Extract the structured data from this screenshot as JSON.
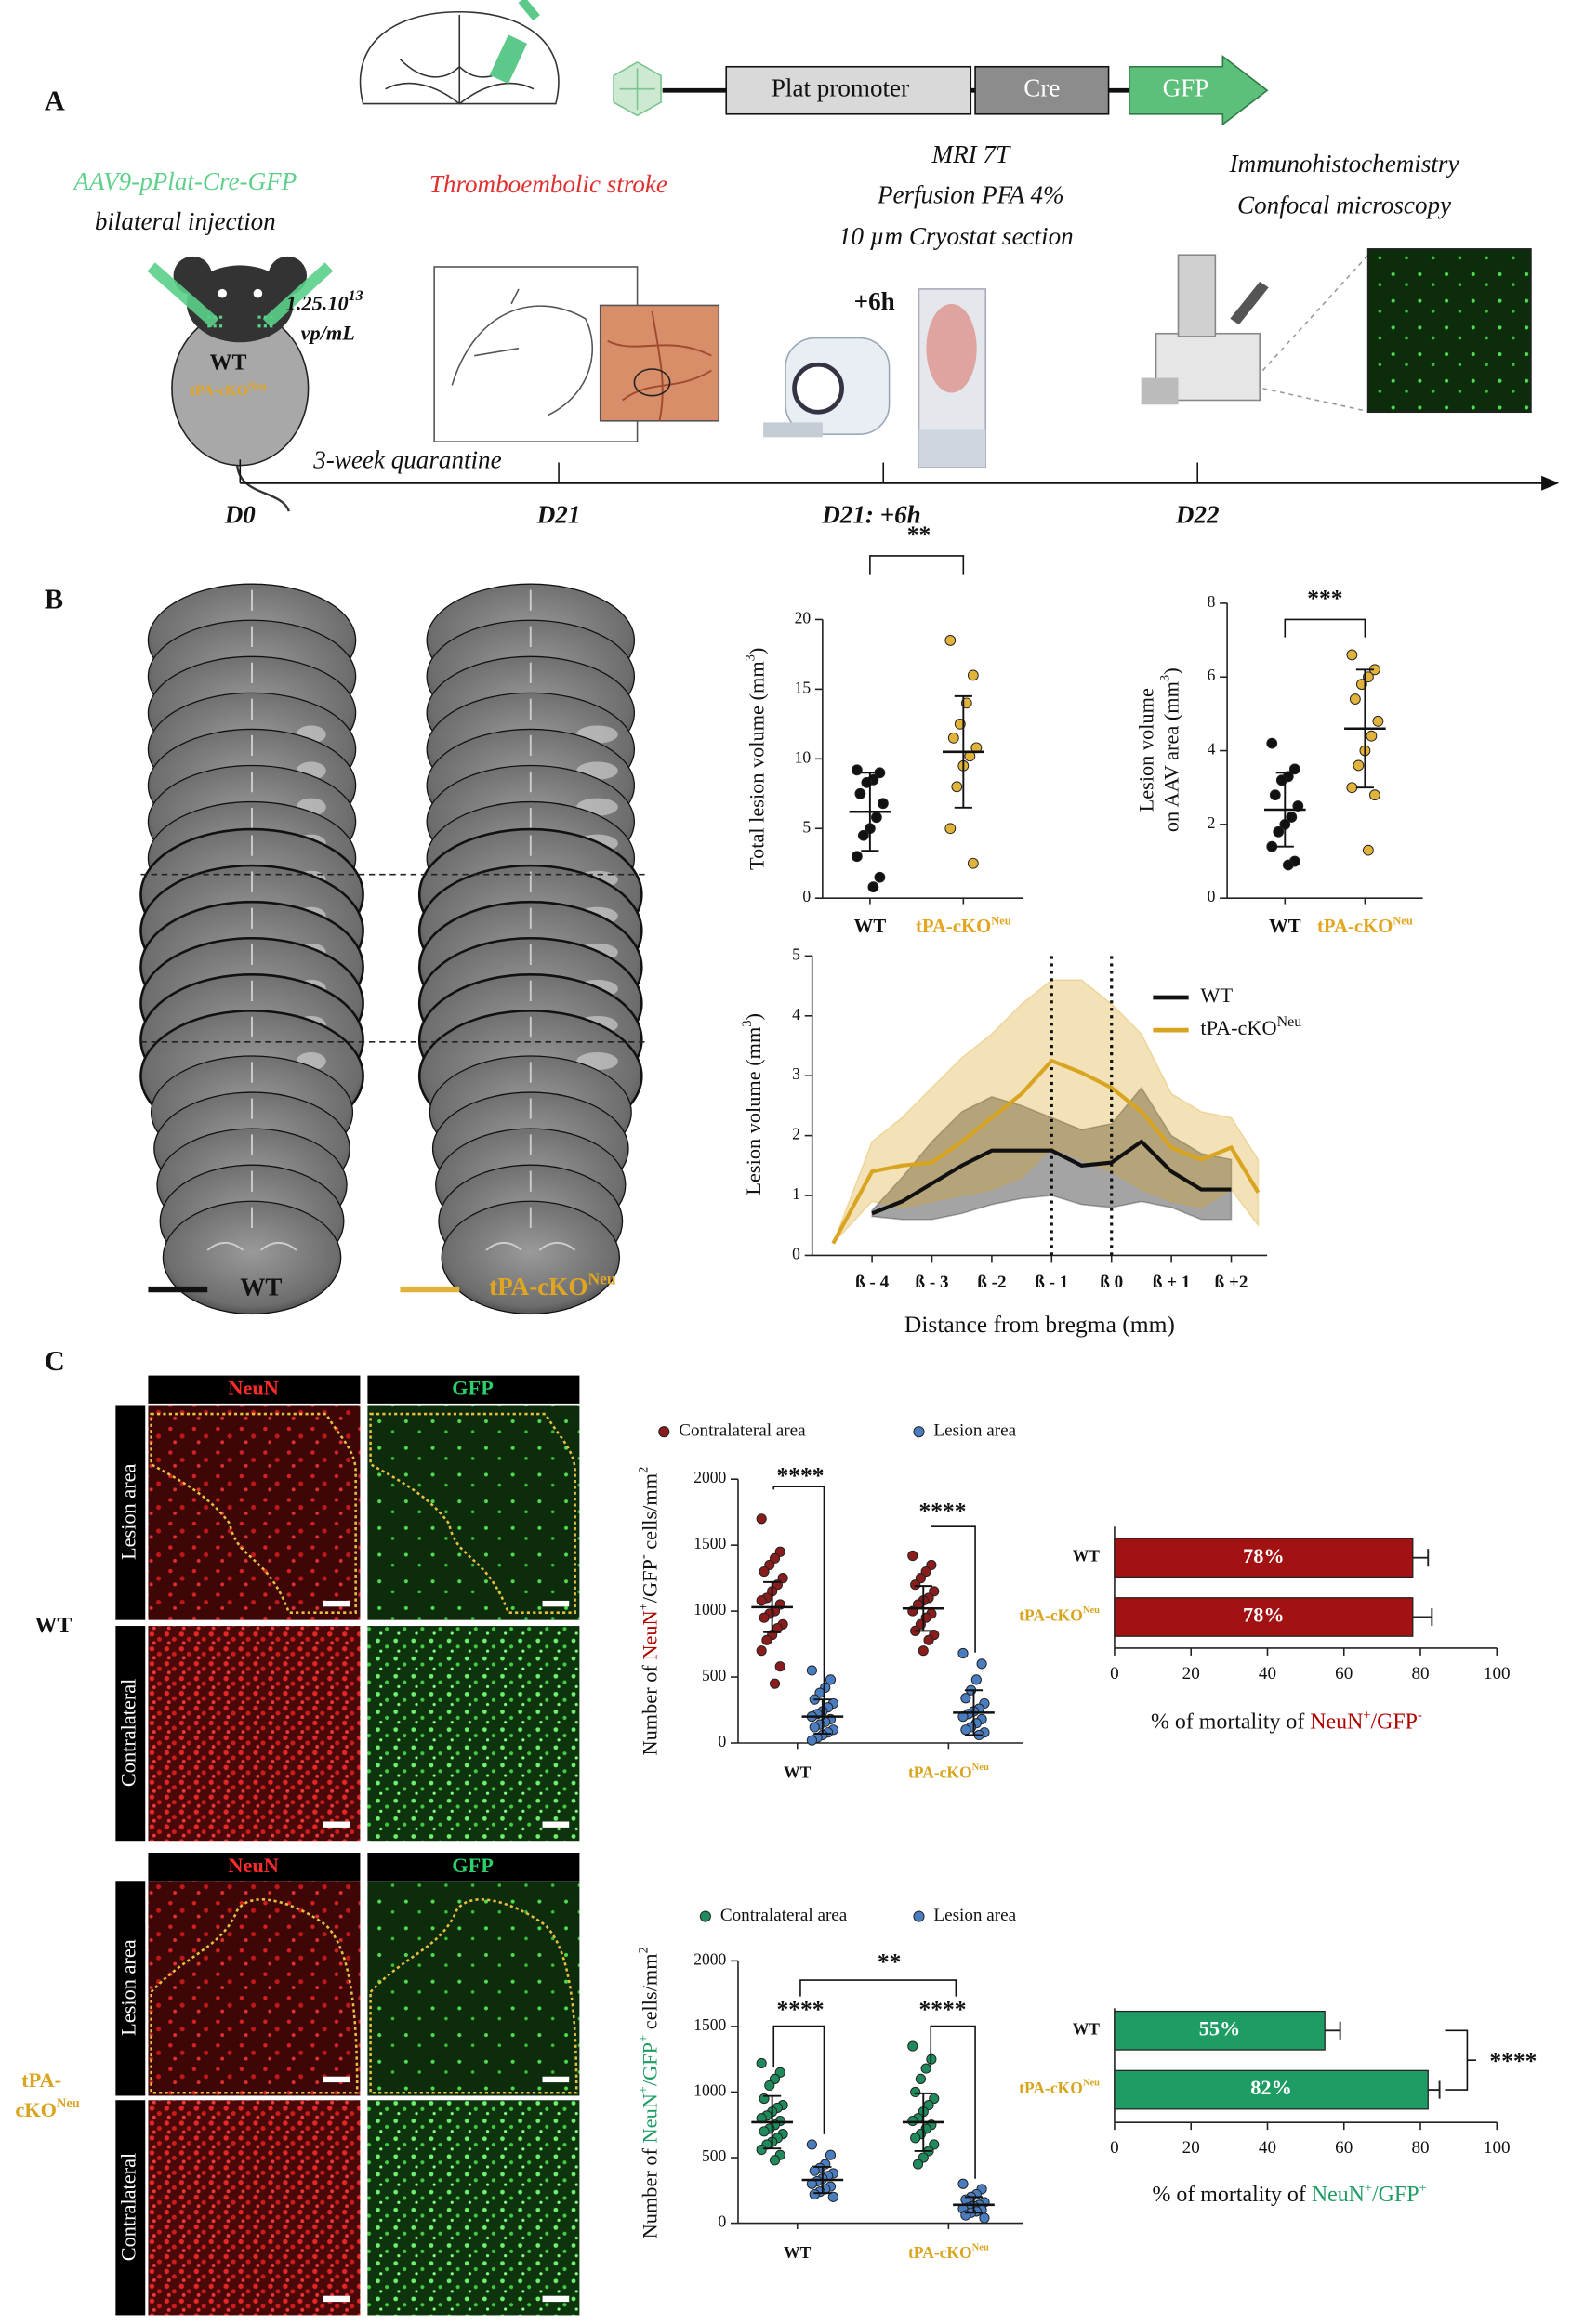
{
  "figure": {
    "panel_labels": [
      "A",
      "B",
      "C"
    ],
    "construct": [
      "Plat promoter",
      "Cre",
      "GFP"
    ],
    "injection": [
      "AAV9-pPlat-Cre-GFP",
      "bilateral injection"
    ],
    "dose": [
      "1.25.10",
      "13",
      "vp/mL"
    ],
    "mouse": [
      "WT",
      "tPA-cKO",
      "Neu"
    ],
    "stroke": "Thromboembolic stroke",
    "imaging": [
      "MRI 7T",
      "Perfusion PFA 4%",
      "10 µm Cryostat section"
    ],
    "histology": [
      "Immunohistochemistry",
      "Confocal microscopy"
    ],
    "delay": "+6h",
    "quarantine": "3-week quarantine",
    "timeline": [
      "D0",
      "D21",
      "D21: +6h",
      "D22"
    ],
    "mri_legend": [
      "WT",
      "tPA-cKO",
      "Neu"
    ],
    "stain_headers": [
      "NeuN",
      "GFP"
    ],
    "regions": [
      "Lesion area",
      "Contralateral"
    ],
    "genotypes": [
      "WT",
      "tPA-",
      "cKO",
      "Neu"
    ]
  },
  "chart_data": [
    {
      "type": "strip",
      "ylabel": [
        "Total lesion volume (mm",
        "3",
        ")"
      ],
      "categories": [
        "WT",
        "tPA-cKO"
      ],
      "category_sup": "Neu",
      "ylim": [
        0,
        20
      ],
      "yticks": [
        0,
        5,
        10,
        15,
        20
      ],
      "series": [
        {
          "colors": [
            "#111111",
            "#e2b33a"
          ],
          "values": [
            [
              9.2,
              9.0,
              8.5,
              8.3,
              7.5,
              6.8,
              5.8,
              5.0,
              4.5,
              3.0,
              1.5,
              0.8
            ],
            [
              18.5,
              16.0,
              14.0,
              12.5,
              11.5,
              10.8,
              10.2,
              9.5,
              8.0,
              5.0,
              2.5
            ]
          ],
          "means": [
            6.2,
            10.5
          ],
          "sds": [
            2.8,
            4.0
          ]
        }
      ],
      "annotations": [
        "**"
      ]
    },
    {
      "type": "strip",
      "ylabel": [
        "Lesion volume",
        "on AAV area (mm",
        "3",
        ")"
      ],
      "categories": [
        "WT",
        "tPA-cKO"
      ],
      "category_sup": "Neu",
      "ylim": [
        0,
        8
      ],
      "yticks": [
        0,
        2,
        4,
        6,
        8
      ],
      "series": [
        {
          "colors": [
            "#111111",
            "#e2b33a"
          ],
          "values": [
            [
              4.2,
              3.5,
              3.3,
              3.2,
              2.8,
              2.5,
              2.2,
              2.0,
              1.8,
              1.4,
              1.0,
              0.9
            ],
            [
              6.6,
              6.2,
              6.0,
              5.8,
              5.4,
              4.8,
              4.4,
              4.0,
              3.6,
              3.0,
              2.8,
              1.3
            ]
          ],
          "means": [
            2.4,
            4.6
          ],
          "sds": [
            1.0,
            1.6
          ]
        }
      ],
      "annotations": [
        "***"
      ]
    },
    {
      "type": "line",
      "ylabel": [
        "Lesion volume (mm",
        "3",
        ")"
      ],
      "xlabel": "Distance from bregma (mm)",
      "x": [
        -4.65,
        -4,
        -3.5,
        -3,
        -2.5,
        -2,
        -1.5,
        -1,
        -0.5,
        0,
        0.5,
        1,
        1.5,
        2,
        2.45
      ],
      "xlim": [
        -5,
        2.6
      ],
      "xticks": [
        {
          "value": -4,
          "label": "ß - 4"
        },
        {
          "value": -3,
          "label": "ß - 3"
        },
        {
          "value": -2,
          "label": "ß -2"
        },
        {
          "value": -1,
          "label": "ß - 1"
        },
        {
          "value": 0,
          "label": "ß 0"
        },
        {
          "value": 1,
          "label": "ß + 1"
        },
        {
          "value": 2,
          "label": "ß +2"
        }
      ],
      "ylim": [
        0,
        5
      ],
      "yticks": [
        0,
        1,
        2,
        3,
        4,
        5
      ],
      "vlines": [
        -1,
        0
      ],
      "series": [
        {
          "name": "WT",
          "color": "#111111",
          "values": [
            null,
            0.7,
            0.9,
            1.2,
            1.5,
            1.75,
            1.75,
            1.75,
            1.5,
            1.55,
            1.9,
            1.4,
            1.1,
            1.1,
            null
          ],
          "upper": [
            null,
            0.75,
            1.3,
            1.9,
            2.4,
            2.65,
            2.5,
            2.3,
            2.1,
            2.2,
            2.8,
            2.0,
            1.7,
            1.6,
            null
          ],
          "lower": [
            null,
            0.65,
            0.6,
            0.6,
            0.7,
            0.85,
            0.95,
            1.0,
            0.85,
            0.8,
            0.9,
            0.8,
            0.6,
            0.6,
            null
          ]
        },
        {
          "name": "tPA-cKO",
          "name_sup": "Neu",
          "color": "#d9a521",
          "values": [
            0.2,
            1.4,
            1.5,
            1.55,
            1.9,
            2.3,
            2.7,
            3.25,
            3.05,
            2.8,
            2.4,
            1.8,
            1.6,
            1.8,
            1.05
          ],
          "upper": [
            0.2,
            1.9,
            2.3,
            2.8,
            3.3,
            3.7,
            4.2,
            4.6,
            4.6,
            4.2,
            3.7,
            2.7,
            2.4,
            2.3,
            1.6
          ],
          "lower": [
            0.2,
            0.9,
            0.8,
            0.9,
            1.0,
            1.1,
            1.3,
            1.8,
            1.6,
            1.4,
            1.1,
            0.9,
            0.8,
            1.1,
            0.5
          ]
        }
      ]
    },
    {
      "type": "strip",
      "ylabel": [
        "Number of ",
        "NeuN",
        "+",
        "/GFP",
        "-",
        " cells/mm",
        "2"
      ],
      "categories": [
        "WT",
        "tPA-cKO"
      ],
      "category_sup": "Neu",
      "ylim": [
        0,
        2000
      ],
      "yticks": [
        0,
        500,
        1000,
        1500,
        2000
      ],
      "series": [
        {
          "name": "Contralateral area",
          "color": "#8b1c1c",
          "values": [
            [
              1700,
              1450,
              1400,
              1350,
              1300,
              1250,
              1200,
              1150,
              1100,
              1080,
              1050,
              1000,
              980,
              950,
              900,
              870,
              820,
              780,
              700,
              580,
              450
            ],
            [
              1420,
              1350,
              1300,
              1250,
              1200,
              1150,
              1100,
              1080,
              1050,
              1000,
              980,
              950,
              900,
              850,
              820,
              780,
              700
            ]
          ],
          "means": [
            1030,
            1020
          ],
          "sds": [
            190,
            170
          ]
        },
        {
          "name": "Lesion area",
          "color": "#4a7cc0",
          "values": [
            [
              550,
              480,
              420,
              380,
              330,
              300,
              270,
              240,
              220,
              200,
              180,
              160,
              140,
              120,
              100,
              80,
              60,
              40,
              20
            ],
            [
              680,
              600,
              480,
              400,
              340,
              300,
              260,
              240,
              220,
              200,
              180,
              150,
              120,
              100,
              80,
              60
            ]
          ],
          "means": [
            200,
            230
          ],
          "sds": [
            130,
            170
          ]
        }
      ],
      "annotations": [
        "****",
        "****"
      ]
    },
    {
      "type": "bar",
      "xlabel": [
        "% of mortality of ",
        "NeuN",
        "+",
        "/GFP",
        "-"
      ],
      "categories": [
        "WT",
        "tPA-cKO"
      ],
      "category_sup": "Neu",
      "values": [
        78,
        78
      ],
      "value_labels": [
        "78%",
        "78%"
      ],
      "errors": [
        4,
        5
      ],
      "color": "#a31212",
      "xlim": [
        0,
        100
      ],
      "xticks": [
        0,
        20,
        40,
        60,
        80,
        100
      ]
    },
    {
      "type": "strip",
      "ylabel": [
        "Number of ",
        "NeuN",
        "+",
        "/GFP",
        "+",
        " cells/mm",
        "2"
      ],
      "categories": [
        "WT",
        "tPA-cKO"
      ],
      "category_sup": "Neu",
      "ylim": [
        0,
        2000
      ],
      "yticks": [
        0,
        500,
        1000,
        1500,
        2000
      ],
      "series": [
        {
          "name": "Contralateral area",
          "color": "#1f8a5b",
          "values": [
            [
              1220,
              1150,
              1100,
              1050,
              950,
              900,
              880,
              850,
              820,
              800,
              780,
              750,
              720,
              700,
              680,
              650,
              620,
              600,
              560,
              520,
              480
            ],
            [
              1350,
              1250,
              1180,
              1100,
              1000,
              950,
              900,
              850,
              800,
              780,
              750,
              720,
              680,
              650,
              600,
              550,
              500,
              450
            ]
          ],
          "means": [
            770,
            770
          ],
          "sds": [
            200,
            220
          ]
        },
        {
          "name": "Lesion area",
          "color": "#4a7cc0",
          "values": [
            [
              600,
              520,
              450,
              420,
              400,
              380,
              360,
              340,
              320,
              300,
              280,
              260,
              240,
              220,
              200
            ],
            [
              300,
              260,
              220,
              200,
              180,
              160,
              140,
              130,
              120,
              110,
              100,
              90,
              80,
              60,
              40
            ]
          ],
          "means": [
            330,
            140
          ],
          "sds": [
            100,
            60
          ]
        }
      ],
      "annotations": [
        "****",
        "****",
        "**"
      ]
    },
    {
      "type": "bar",
      "xlabel": [
        "% of mortality of ",
        "NeuN",
        "+",
        "/GFP",
        "+"
      ],
      "categories": [
        "WT",
        "tPA-cKO"
      ],
      "category_sup": "Neu",
      "values": [
        55,
        82
      ],
      "value_labels": [
        "55%",
        "82%"
      ],
      "errors": [
        4,
        3
      ],
      "color": "#1f9c64",
      "xlim": [
        0,
        100
      ],
      "xticks": [
        0,
        20,
        40,
        60,
        80,
        100
      ],
      "annotations": [
        "****"
      ]
    }
  ]
}
